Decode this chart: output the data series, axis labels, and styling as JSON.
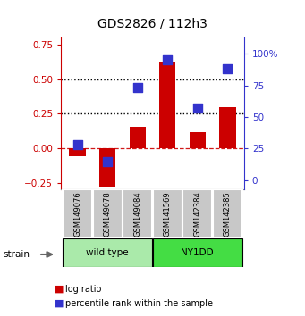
{
  "title": "GDS2826 / 112h3",
  "samples": [
    "GSM149076",
    "GSM149078",
    "GSM149084",
    "GSM141569",
    "GSM142384",
    "GSM142385"
  ],
  "log_ratio": [
    -0.06,
    -0.28,
    0.155,
    0.62,
    0.12,
    0.3
  ],
  "percentile_rank": [
    28,
    15,
    73,
    95,
    57,
    88
  ],
  "ylim_left": [
    -0.3,
    0.8
  ],
  "ylim_right": [
    -7.5,
    112.5
  ],
  "yticks_left": [
    -0.25,
    0.0,
    0.25,
    0.5,
    0.75
  ],
  "yticks_right": [
    0,
    25,
    50,
    75,
    100
  ],
  "ytick_labels_right": [
    "0",
    "25",
    "50",
    "75",
    "100%"
  ],
  "dotted_lines": [
    0.25,
    0.5
  ],
  "zero_line": 0.0,
  "bar_color": "#cc0000",
  "square_color": "#3333cc",
  "groups": [
    {
      "label": "wild type",
      "indices": [
        0,
        1,
        2
      ],
      "color": "#aaeaaa"
    },
    {
      "label": "NY1DD",
      "indices": [
        3,
        4,
        5
      ],
      "color": "#44dd44"
    }
  ],
  "strain_label": "strain",
  "legend_bar": "log ratio",
  "legend_square": "percentile rank within the sample",
  "background_color": "#ffffff",
  "plot_bg": "#ffffff",
  "tick_color_left": "#cc0000",
  "tick_color_right": "#3333cc",
  "sample_box_color": "#c8c8c8"
}
